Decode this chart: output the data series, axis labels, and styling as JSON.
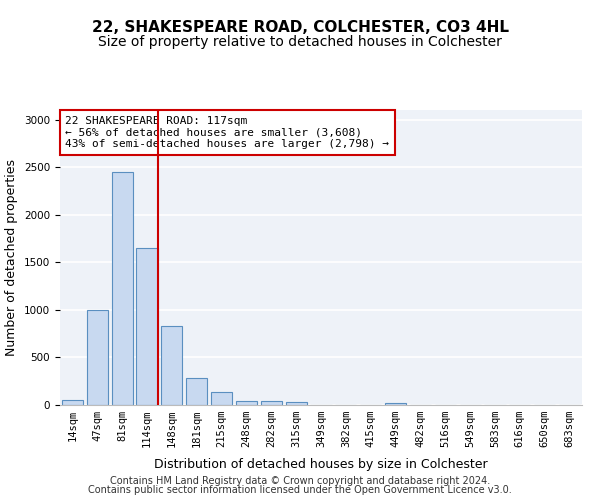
{
  "title1": "22, SHAKESPEARE ROAD, COLCHESTER, CO3 4HL",
  "title2": "Size of property relative to detached houses in Colchester",
  "xlabel": "Distribution of detached houses by size in Colchester",
  "ylabel": "Number of detached properties",
  "categories": [
    "14sqm",
    "47sqm",
    "81sqm",
    "114sqm",
    "148sqm",
    "181sqm",
    "215sqm",
    "248sqm",
    "282sqm",
    "315sqm",
    "349sqm",
    "382sqm",
    "415sqm",
    "449sqm",
    "482sqm",
    "516sqm",
    "549sqm",
    "583sqm",
    "616sqm",
    "650sqm",
    "683sqm"
  ],
  "values": [
    55,
    1000,
    2450,
    1650,
    830,
    285,
    140,
    40,
    40,
    35,
    0,
    0,
    0,
    25,
    0,
    0,
    0,
    0,
    0,
    0,
    0
  ],
  "bar_color": "#c8d9f0",
  "bar_edge_color": "#5a8fc0",
  "vline_index": 3,
  "annotation_text_line1": "22 SHAKESPEARE ROAD: 117sqm",
  "annotation_text_line2": "← 56% of detached houses are smaller (3,608)",
  "annotation_text_line3": "43% of semi-detached houses are larger (2,798) →",
  "vline_color": "#cc0000",
  "annotation_box_facecolor": "#ffffff",
  "annotation_box_edgecolor": "#cc0000",
  "ylim_max": 3100,
  "bg_color": "#eef2f8",
  "grid_color": "#ffffff",
  "title1_fontsize": 11,
  "title2_fontsize": 10,
  "ylabel_fontsize": 9,
  "xlabel_fontsize": 9,
  "tick_fontsize": 7.5,
  "annot_fontsize": 8,
  "footer1": "Contains HM Land Registry data © Crown copyright and database right 2024.",
  "footer2": "Contains public sector information licensed under the Open Government Licence v3.0.",
  "footer_fontsize": 7
}
